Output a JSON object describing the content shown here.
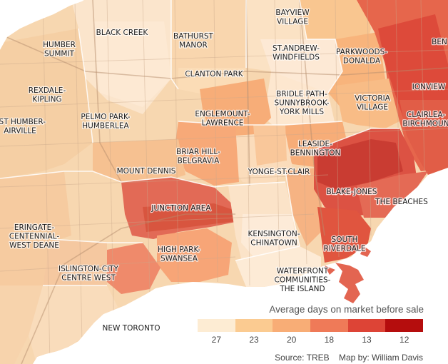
{
  "legend": {
    "title": "Average days on market before sale",
    "bins": [
      {
        "label": "27",
        "color": "#fdecd3"
      },
      {
        "label": "23",
        "color": "#fbcb91"
      },
      {
        "label": "20",
        "color": "#f8ad76"
      },
      {
        "label": "18",
        "color": "#ef7a58"
      },
      {
        "label": "13",
        "color": "#dd4436"
      },
      {
        "label": "12",
        "color": "#b50d0d"
      }
    ]
  },
  "credits": {
    "source": "Source: TREB",
    "author": "Map by: William Davis"
  },
  "neighbourhoods": [
    {
      "lines": [
        "BAYVIEW",
        "VILLAGE"
      ],
      "value_label": "23"
    },
    {
      "lines": [
        "BLACK CREEK"
      ],
      "value_label": "27"
    },
    {
      "lines": [
        "HUMBER",
        "SUMMIT"
      ],
      "value_label": "23"
    },
    {
      "lines": [
        "BATHURST",
        "MANOR"
      ],
      "value_label": "23"
    },
    {
      "lines": [
        "ST.ANDREW-",
        "WINDFIELDS"
      ],
      "value_label": "27"
    },
    {
      "lines": [
        "PARKWOODS-",
        "DONALDA"
      ],
      "value_label": "20"
    },
    {
      "lines": [
        "BEN"
      ],
      "value_label": "13"
    },
    {
      "lines": [
        "IONVIEW"
      ],
      "value_label": "13"
    },
    {
      "lines": [
        "CLANTON PARK"
      ],
      "value_label": "23"
    },
    {
      "lines": [
        "REXDALE-",
        "KIPLING"
      ],
      "value_label": "23"
    },
    {
      "lines": [
        "BRIDLE PATH-",
        "SUNNYBROOK-",
        "YORK MILLS"
      ],
      "value_label": "27"
    },
    {
      "lines": [
        "VICTORIA",
        "VILLAGE"
      ],
      "value_label": "20"
    },
    {
      "lines": [
        "EST HUMBER-",
        "AIRVILLE"
      ],
      "value_label": "23"
    },
    {
      "lines": [
        "PELMO PARK-",
        "HUMBERLEA"
      ],
      "value_label": "23"
    },
    {
      "lines": [
        "ENGLEMOUNT-",
        "LAWRENCE"
      ],
      "value_label": "20"
    },
    {
      "lines": [
        "CLAIRLEA-",
        "BIRCHMOUN"
      ],
      "value_label": "13"
    },
    {
      "lines": [
        "LEASIDE-",
        "BENNINGTON"
      ],
      "value_label": "20"
    },
    {
      "lines": [
        "BRIAR HILL-",
        "BELGRAVIA"
      ],
      "value_label": "20"
    },
    {
      "lines": [
        "MOUNT DENNIS"
      ],
      "value_label": "20"
    },
    {
      "lines": [
        "YONGE-ST.CLAIR"
      ],
      "value_label": "23"
    },
    {
      "lines": [
        "BLAKE-JONES"
      ],
      "value_label": "13"
    },
    {
      "lines": [
        "THE BEACHES"
      ],
      "value_label": "18"
    },
    {
      "lines": [
        "JUNCTION AREA"
      ],
      "value_label": "13"
    },
    {
      "lines": [
        "ERINGATE-",
        "CENTENNIAL-",
        "WEST DEANE"
      ],
      "value_label": "23"
    },
    {
      "lines": [
        "KENSINGTON-",
        "CHINATOWN"
      ],
      "value_label": "27"
    },
    {
      "lines": [
        "SOUTH",
        "RIVERDALE"
      ],
      "value_label": "13"
    },
    {
      "lines": [
        "HIGH PARK-",
        "SWANSEA"
      ],
      "value_label": "18"
    },
    {
      "lines": [
        "ISLINGTON-CITY",
        "CENTRE WEST"
      ],
      "value_label": "23"
    },
    {
      "lines": [
        "WATERFRONT",
        "COMMUNITIES-",
        "THE ISLAND"
      ],
      "value_label": "27"
    },
    {
      "lines": [
        "NEW TORONTO"
      ],
      "value_label": "27"
    }
  ]
}
